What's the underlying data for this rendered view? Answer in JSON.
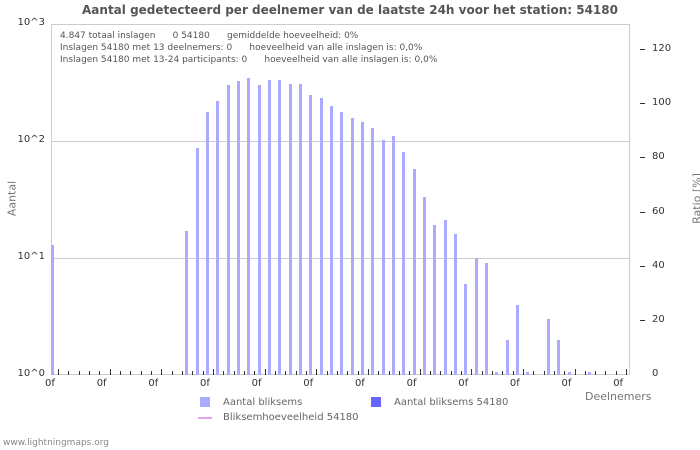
{
  "chart": {
    "title": "Aantal gedetecteerd per deelnemer van de laatste 24h voor het station: 54180",
    "info_lines": [
      "4.847 totaal inslagen      0 54180      gemiddelde hoeveelheid: 0%",
      "Inslagen 54180 met 13 deelnemers: 0      hoeveelheid van alle inslagen is: 0,0%",
      "Inslagen 54180 met 13-24 participants: 0      hoeveelheid van alle inslagen is: 0,0%"
    ],
    "ylabel": "Aantal",
    "y2label": "Ratio [%]",
    "xlabel": "Deelnemers",
    "left_ticks": [
      "10^3",
      "10^2",
      "10^1",
      "10^0"
    ],
    "right_ticks": [
      "120",
      "100",
      "80",
      "60",
      "40",
      "20",
      "0"
    ],
    "x_tick_label": "0f",
    "legend": {
      "series1": "Aantal bliksems",
      "series2": "Aantal bliksems 54180",
      "series3": "Bliksemhoeveelheid 54180"
    },
    "colors": {
      "series1": "#aaaaff",
      "series2": "#6666ff",
      "series3": "#e8a0f0"
    }
  },
  "footer": "www.lightningmaps.org",
  "chart_data": {
    "type": "bar",
    "title": "Aantal gedetecteerd per deelnemer van de laatste 24h voor het station: 54180",
    "xlabel": "Deelnemers",
    "ylabel": "Aantal",
    "y2label": "Ratio [%]",
    "yscale": "log",
    "ylim": [
      1,
      1000
    ],
    "y2lim": [
      0,
      130
    ],
    "x_tick_labels": [
      "0f",
      "0f",
      "0f",
      "0f",
      "0f",
      "0f",
      "0f",
      "0f",
      "0f",
      "0f",
      "0f",
      "0f"
    ],
    "categories": [
      0,
      1,
      2,
      3,
      4,
      5,
      6,
      7,
      8,
      9,
      10,
      11,
      12,
      13,
      14,
      15,
      16,
      17,
      18,
      19,
      20,
      21,
      22,
      23,
      24,
      25,
      26,
      27,
      28,
      29,
      30,
      31,
      32,
      33,
      34,
      35,
      36,
      37,
      38,
      39,
      40,
      41,
      42,
      43,
      44,
      45,
      46,
      47,
      48,
      49,
      50,
      51,
      52,
      53,
      54,
      55
    ],
    "series": [
      {
        "name": "Aantal bliksems",
        "values": [
          13,
          0,
          0,
          0,
          0,
          0,
          0,
          0,
          0,
          0,
          0,
          0,
          0,
          17,
          88,
          177,
          220,
          300,
          325,
          345,
          300,
          330,
          330,
          310,
          310,
          245,
          232,
          200,
          177,
          157,
          145,
          128,
          102,
          110,
          80,
          58,
          33,
          19,
          21,
          16,
          6,
          10,
          9,
          1,
          2,
          4,
          1,
          0,
          3,
          2,
          1,
          0,
          1,
          0,
          0,
          0
        ]
      },
      {
        "name": "Aantal bliksems 54180",
        "values": []
      },
      {
        "name": "Bliksemhoeveelheid 54180",
        "values": []
      }
    ],
    "legend_position": "bottom",
    "grid": true
  }
}
